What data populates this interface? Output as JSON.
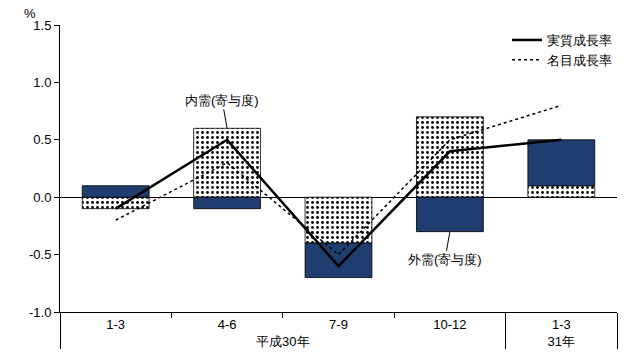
{
  "chart_data": {
    "type": "bar",
    "stacked": true,
    "grid": false,
    "legend": "top right",
    "ylabel": "%",
    "categories": [
      [
        "平成30年",
        "1-3"
      ],
      [
        "平成30年",
        "4-6"
      ],
      [
        "平成30年",
        "7-9"
      ],
      [
        "平成30年",
        "10-12"
      ],
      [
        "31年",
        "1-3"
      ]
    ],
    "ylim": [
      -1.0,
      1.5
    ],
    "yticks": [
      {
        "value": -1.0,
        "label": "-1.0"
      },
      -0.5,
      {
        "value": 0.0,
        "label": "0.0"
      },
      0.5,
      {
        "value": 1.0,
        "label": "1.0"
      },
      1.5
    ],
    "series": [
      {
        "type": "bar",
        "color": "#ffffff",
        "marker": "dots",
        "values": [
          -0.1,
          0.6,
          -0.4,
          0.7,
          0.1
        ]
      },
      {
        "type": "bar",
        "color": "#1f3d6e",
        "marker": "solid",
        "values": [
          0.1,
          -0.1,
          -0.3,
          -0.3,
          0.4
        ]
      },
      {
        "name": "実質成長率",
        "type": "line",
        "color": "#000000",
        "line_style": "solid",
        "values": [
          -0.1,
          0.5,
          -0.6,
          0.4,
          0.5
        ]
      },
      {
        "name": "名目成長率",
        "type": "line",
        "color": "#000000",
        "line_style": "dotted",
        "values": [
          -0.2,
          0.3,
          -0.5,
          0.5,
          0.8
        ]
      }
    ],
    "annotations": [
      {
        "text": "内需(寄与度)",
        "x": 1,
        "y": 0.6
      },
      {
        "text": "外需(寄与度)",
        "x": 3,
        "y": -0.3
      }
    ]
  }
}
